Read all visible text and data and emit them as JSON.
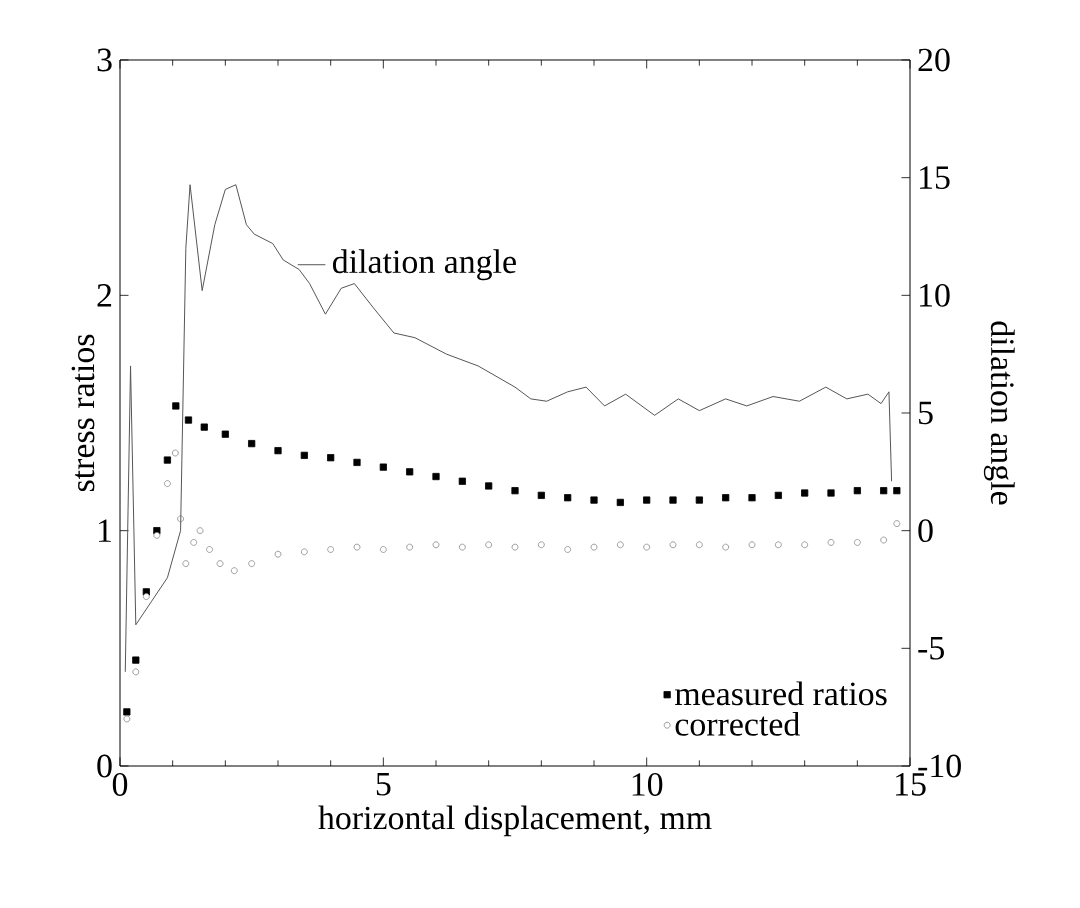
{
  "chart_data": {
    "type": "scatter",
    "xlabel": "horizontal displacement, mm",
    "ylabel": "stress ratios",
    "y2label": "dilation angle",
    "xlim": [
      0,
      15
    ],
    "xticks": [
      0,
      5,
      10,
      15
    ],
    "ylim": [
      0,
      3
    ],
    "yticks": [
      0,
      1,
      2,
      3
    ],
    "y2lim": [
      -10,
      20
    ],
    "y2ticks": [
      -10,
      -5,
      0,
      5,
      10,
      15,
      20
    ],
    "legend": "bottom right",
    "grid": false,
    "series": [
      {
        "name": "measured ratios",
        "marker": "square",
        "color": "#000000",
        "x": [
          0.13,
          0.3,
          0.5,
          0.7,
          0.9,
          1.06,
          1.3,
          1.6,
          2,
          2.5,
          3,
          3.5,
          4,
          4.5,
          5,
          5.5,
          6,
          6.5,
          7,
          7.5,
          8,
          8.5,
          9,
          9.5,
          10,
          10.5,
          11,
          11.5,
          12,
          12.5,
          13,
          13.5,
          14,
          14.5,
          14.75
        ],
        "values": [
          0.23,
          0.45,
          0.74,
          1.0,
          1.3,
          1.53,
          1.47,
          1.44,
          1.41,
          1.37,
          1.34,
          1.32,
          1.31,
          1.29,
          1.27,
          1.25,
          1.23,
          1.21,
          1.19,
          1.17,
          1.15,
          1.14,
          1.13,
          1.12,
          1.13,
          1.13,
          1.13,
          1.14,
          1.14,
          1.15,
          1.16,
          1.16,
          1.17,
          1.17,
          1.17
        ]
      },
      {
        "name": "corrected",
        "marker": "circle",
        "color": "#888888",
        "x": [
          0.13,
          0.3,
          0.5,
          0.7,
          0.9,
          1.05,
          1.15,
          1.25,
          1.4,
          1.52,
          1.7,
          1.9,
          2.17,
          2.5,
          3,
          3.5,
          4,
          4.5,
          5,
          5.5,
          6,
          6.5,
          7,
          7.5,
          8,
          8.5,
          9,
          9.5,
          10,
          10.5,
          11,
          11.5,
          12,
          12.5,
          13,
          13.5,
          14,
          14.5,
          14.75
        ],
        "values": [
          0.2,
          0.4,
          0.72,
          0.98,
          1.2,
          1.33,
          1.05,
          0.86,
          0.95,
          1.0,
          0.92,
          0.86,
          0.83,
          0.86,
          0.9,
          0.91,
          0.92,
          0.93,
          0.92,
          0.93,
          0.94,
          0.93,
          0.94,
          0.93,
          0.94,
          0.92,
          0.93,
          0.94,
          0.93,
          0.94,
          0.94,
          0.93,
          0.94,
          0.94,
          0.94,
          0.95,
          0.95,
          0.96,
          1.03
        ]
      },
      {
        "name": "dilation angle",
        "type": "line",
        "axis": "y2",
        "marker": "none",
        "color": "#555555",
        "x": [
          0.1,
          0.2,
          0.3,
          0.6,
          0.9,
          1.15,
          1.25,
          1.33,
          1.56,
          1.8,
          2.0,
          2.2,
          2.4,
          2.55,
          2.9,
          3.1,
          3.4,
          3.6,
          3.9,
          4.2,
          4.45,
          4.8,
          5.2,
          5.6,
          6.2,
          6.8,
          7.5,
          7.8,
          8.1,
          8.5,
          8.85,
          9.2,
          9.6,
          10.15,
          10.6,
          11.0,
          11.5,
          11.9,
          12.4,
          12.9,
          13.4,
          13.8,
          14.2,
          14.45,
          14.6,
          14.65
        ],
        "values": [
          -6,
          7,
          -4,
          -3,
          -2,
          0,
          12,
          14.7,
          10.2,
          13,
          14.5,
          14.7,
          13,
          12.6,
          12.2,
          11.5,
          11.1,
          10.5,
          9.2,
          10.3,
          10.5,
          9.5,
          8.4,
          8.2,
          7.5,
          7.0,
          6.1,
          5.6,
          5.5,
          5.9,
          6.1,
          5.3,
          5.8,
          4.9,
          5.6,
          5.1,
          5.6,
          5.3,
          5.7,
          5.5,
          6.1,
          5.6,
          5.8,
          5.4,
          5.9,
          2.1
        ]
      }
    ]
  }
}
